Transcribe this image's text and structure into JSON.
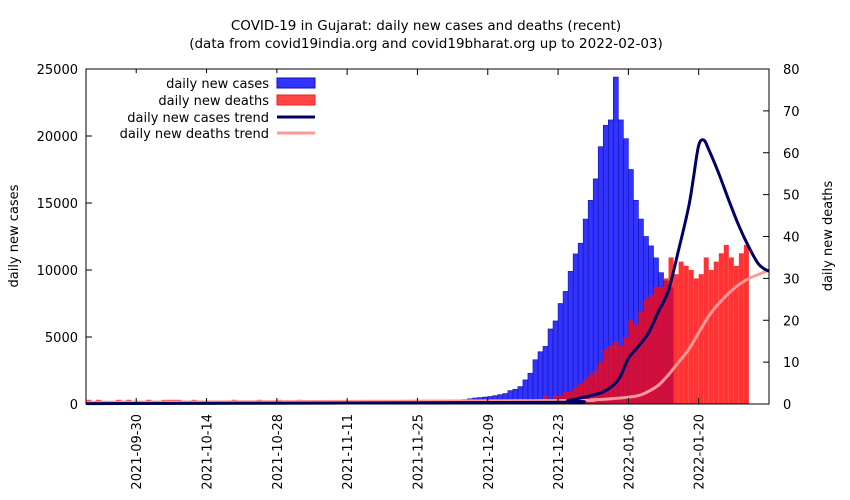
{
  "chart_data": {
    "type": "bar",
    "title": "COVID-19 in Gujarat: daily new cases and deaths (recent)",
    "subtitle": "(data from covid19india.org and covid19bharat.org up to 2022-02-03)",
    "ylabel_left": "daily new cases",
    "ylabel_right": "daily new deaths",
    "xlim": [
      "2021-09-20",
      "2022-02-03"
    ],
    "ylim_left": [
      0,
      25000
    ],
    "ylim_right": [
      0,
      80
    ],
    "yticks_left": [
      "0",
      "5000",
      "10000",
      "15000",
      "20000",
      "25000"
    ],
    "yticks_right": [
      "0",
      "10",
      "20",
      "30",
      "40",
      "50",
      "60",
      "70",
      "80"
    ],
    "xticks": [
      "2021-09-30",
      "2021-10-14",
      "2021-10-28",
      "2021-11-11",
      "2021-11-25",
      "2021-12-09",
      "2021-12-23",
      "2022-01-06",
      "2022-01-20"
    ],
    "legend_position": "top-left",
    "colors": {
      "cases": "#3333ff",
      "cases_edge": "#1111aa",
      "deaths": "#ff3333",
      "overlap": "#d00f3c",
      "cases_trend": "#000066",
      "deaths_trend": "#ff9999"
    },
    "series": [
      {
        "name": "daily new cases",
        "start": "2021-09-20",
        "values": [
          14,
          18,
          15,
          16,
          19,
          21,
          16,
          17,
          18,
          20,
          22,
          19,
          16,
          18,
          17,
          21,
          23,
          20,
          18,
          16,
          19,
          22,
          24,
          26,
          21,
          19,
          18,
          22,
          25,
          28,
          31,
          27,
          24,
          30,
          34,
          38,
          40,
          36,
          33,
          38,
          42,
          45,
          41,
          39,
          44,
          48,
          50,
          47,
          44,
          52,
          56,
          59,
          55,
          51,
          58,
          62,
          65,
          60,
          56,
          64,
          70,
          78,
          85,
          90,
          110,
          130,
          140,
          150,
          160,
          175,
          190,
          210,
          230,
          250,
          290,
          330,
          390,
          450,
          480,
          520,
          560,
          620,
          700,
          780,
          1000,
          1100,
          1300,
          1800,
          2300,
          3300,
          3900,
          4300,
          5600,
          6200,
          7500,
          8400,
          9900,
          11200,
          12000,
          13800,
          15200,
          16800,
          19200,
          20800,
          21200,
          24400,
          21200,
          19800,
          17500,
          15200,
          13800,
          12500,
          11800,
          10900,
          9800,
          9200,
          8700
        ]
      },
      {
        "name": "daily new deaths",
        "start": "2021-09-20",
        "values": [
          1,
          0,
          1,
          0,
          0,
          0,
          1,
          0,
          1,
          0,
          0,
          0,
          1,
          0,
          0,
          1,
          1,
          1,
          1,
          0,
          0,
          1,
          0,
          0,
          0,
          0,
          0,
          0,
          0,
          1,
          0,
          0,
          0,
          0,
          1,
          0,
          0,
          0,
          1,
          0,
          0,
          0,
          1,
          0,
          0,
          0,
          0,
          0,
          0,
          0,
          0,
          0,
          0,
          0,
          0,
          0,
          0,
          0,
          0,
          0,
          0,
          0,
          0,
          0,
          0,
          1,
          0,
          0,
          1,
          0,
          0,
          0,
          0,
          0,
          1,
          0,
          1,
          0,
          1,
          0,
          0,
          0,
          0,
          0,
          1,
          0,
          1,
          1,
          0,
          0,
          1,
          2,
          1,
          2,
          2,
          3,
          3,
          4,
          5,
          6,
          7,
          8,
          10,
          13,
          14,
          15,
          14,
          16,
          20,
          19,
          22,
          25,
          26,
          28,
          28,
          30,
          35,
          31,
          34,
          33,
          32,
          30,
          31,
          35,
          32,
          34,
          36,
          38,
          35,
          33,
          36,
          38
        ]
      },
      {
        "name": "daily new cases trend",
        "x": [
          "2021-09-20",
          "2021-12-20",
          "2021-12-25",
          "2021-12-28",
          "2022-01-01",
          "2022-01-04",
          "2022-01-06",
          "2022-01-08",
          "2022-01-10",
          "2022-01-12",
          "2022-01-14",
          "2022-01-16",
          "2022-01-18",
          "2022-01-19",
          "2022-01-20",
          "2022-01-21",
          "2022-01-22",
          "2022-01-24",
          "2022-01-26",
          "2022-01-28",
          "2022-01-30",
          "2022-02-01",
          "2022-02-03"
        ],
        "values": [
          30,
          120,
          260,
          500,
          900,
          1800,
          3400,
          4300,
          5300,
          6900,
          8500,
          11500,
          14700,
          17000,
          19300,
          19700,
          19000,
          17200,
          15200,
          13300,
          11700,
          10400,
          9900
        ]
      },
      {
        "name": "daily new deaths trend",
        "x": [
          "2021-09-20",
          "2021-12-20",
          "2021-12-30",
          "2022-01-05",
          "2022-01-08",
          "2022-01-10",
          "2022-01-12",
          "2022-01-14",
          "2022-01-16",
          "2022-01-18",
          "2022-01-20",
          "2022-01-22",
          "2022-01-24",
          "2022-01-26",
          "2022-01-28",
          "2022-01-30",
          "2022-02-01",
          "2022-02-03"
        ],
        "values": [
          0.4,
          0.8,
          1,
          1.5,
          2,
          3,
          4.5,
          7,
          10,
          13,
          17,
          21,
          24,
          26.5,
          28.5,
          30,
          31,
          32
        ]
      }
    ]
  }
}
